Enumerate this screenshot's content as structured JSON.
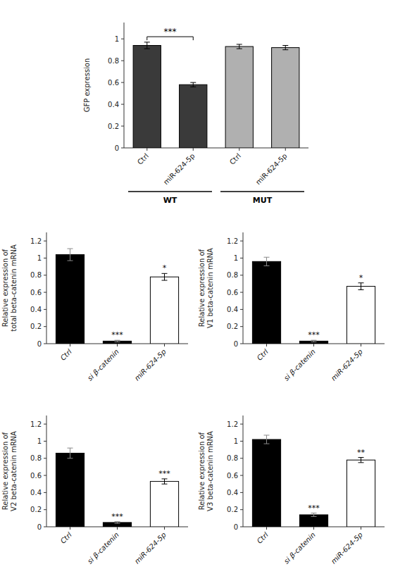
{
  "chart_data": [
    {
      "type": "bar",
      "categories": [
        "Ctrl",
        "miR-624-5p",
        "Ctrl",
        "miR-624-5p"
      ],
      "values": [
        0.94,
        0.58,
        0.93,
        0.92
      ],
      "errors": [
        0.03,
        0.02,
        0.02,
        0.02
      ],
      "colors": [
        "#3a3a3a",
        "#3a3a3a",
        "#b0b0b0",
        "#b0b0b0"
      ],
      "y_label": "GFP expression",
      "ylim": [
        0,
        1.15
      ],
      "yticks": [
        0,
        0.2,
        0.4,
        0.6,
        0.8,
        1
      ],
      "groups": [
        "WT",
        "MUT"
      ],
      "annotations": [
        {
          "text": "***",
          "y": 1.02
        }
      ]
    },
    {
      "type": "bar",
      "categories": [
        "Ctrl",
        "si β-catenin",
        "miR-624-5p"
      ],
      "values": [
        1.04,
        0.03,
        0.78
      ],
      "errors": [
        0.07,
        0.01,
        0.04
      ],
      "colors": [
        "#000000",
        "#000000",
        "#ffffff"
      ],
      "y_label": "Relative expression of\ntotal beta-catenin mRNA",
      "ylim": [
        0,
        1.3
      ],
      "yticks": [
        0,
        0.2,
        0.4,
        0.6,
        0.8,
        1,
        1.2
      ],
      "annotations": [
        null,
        "***",
        "*"
      ]
    },
    {
      "type": "bar",
      "categories": [
        "Ctrl",
        "si β-catenin",
        "miR-624-5p"
      ],
      "values": [
        0.96,
        0.03,
        0.67
      ],
      "errors": [
        0.05,
        0.01,
        0.04
      ],
      "colors": [
        "#000000",
        "#000000",
        "#ffffff"
      ],
      "y_label": "Relative expression of\nV1 beta-catenin mRNA",
      "ylim": [
        0,
        1.3
      ],
      "yticks": [
        0,
        0.2,
        0.4,
        0.6,
        0.8,
        1,
        1.2
      ],
      "annotations": [
        null,
        "***",
        "*"
      ]
    },
    {
      "type": "bar",
      "categories": [
        "Ctrl",
        "si β-catenin",
        "miR-624-5p"
      ],
      "values": [
        0.86,
        0.05,
        0.53
      ],
      "errors": [
        0.06,
        0.01,
        0.03
      ],
      "colors": [
        "#000000",
        "#000000",
        "#ffffff"
      ],
      "y_label": "Relative expression of\nV2 beta-catenin mRNA",
      "ylim": [
        0,
        1.3
      ],
      "yticks": [
        0,
        0.2,
        0.4,
        0.6,
        0.8,
        1,
        1.2
      ],
      "annotations": [
        null,
        "***",
        "***"
      ]
    },
    {
      "type": "bar",
      "categories": [
        "Ctrl",
        "si β-catenin",
        "miR-624-5p"
      ],
      "values": [
        1.02,
        0.14,
        0.78
      ],
      "errors": [
        0.05,
        0.02,
        0.03
      ],
      "colors": [
        "#000000",
        "#000000",
        "#ffffff"
      ],
      "y_label": "Relative expression of\nV3 beta-catenin mRNA",
      "ylim": [
        0,
        1.3
      ],
      "yticks": [
        0,
        0.2,
        0.4,
        0.6,
        0.8,
        1,
        1.2
      ],
      "annotations": [
        null,
        "***",
        "**"
      ]
    }
  ]
}
